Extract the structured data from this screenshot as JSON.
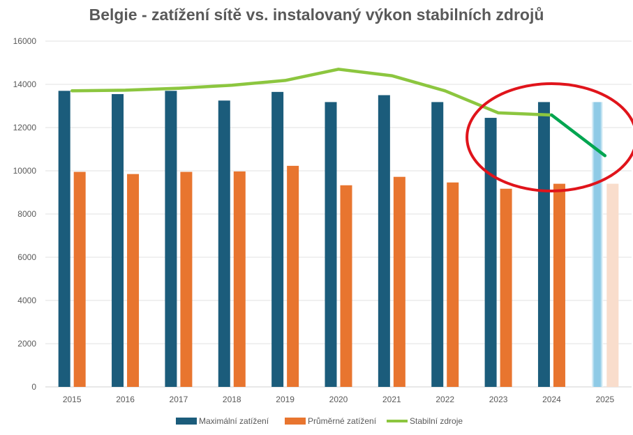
{
  "chart_data": {
    "type": "bar",
    "title": "Belgie - zatížení sítě vs. instalovaný výkon stabilních zdrojů",
    "categories": [
      "2015",
      "2016",
      "2017",
      "2018",
      "2019",
      "2020",
      "2021",
      "2022",
      "2023",
      "2024",
      "2025"
    ],
    "ylim": [
      0,
      16000
    ],
    "yticks": [
      0,
      2000,
      4000,
      6000,
      8000,
      10000,
      12000,
      14000,
      16000
    ],
    "grid": true,
    "legend_position": "bottom",
    "series": [
      {
        "name": "Maximální zatížení",
        "type": "bar",
        "color": "#1b5c7b",
        "values": [
          13700,
          13550,
          13700,
          13250,
          13650,
          13180,
          13500,
          13180,
          12450,
          13180,
          13180
        ]
      },
      {
        "name": "Průměrné zatížení",
        "type": "bar",
        "color": "#e8752f",
        "values": [
          9950,
          9850,
          9950,
          9970,
          10230,
          9330,
          9720,
          9460,
          9170,
          9400,
          9400
        ]
      },
      {
        "name": "Stabilní zdroje",
        "type": "line",
        "color": "#8cc63f",
        "values": [
          13700,
          13730,
          13820,
          13960,
          14180,
          14700,
          14400,
          13700,
          12680,
          12580,
          10700
        ]
      }
    ],
    "projection": {
      "category": "2025",
      "bar_colors": [
        "#8ecae6",
        "#f9ddcc"
      ],
      "line_color": "#00a550"
    },
    "annotation": {
      "type": "ellipse",
      "color": "#e0141b",
      "around": [
        "2023",
        "2024",
        "2025"
      ]
    }
  }
}
